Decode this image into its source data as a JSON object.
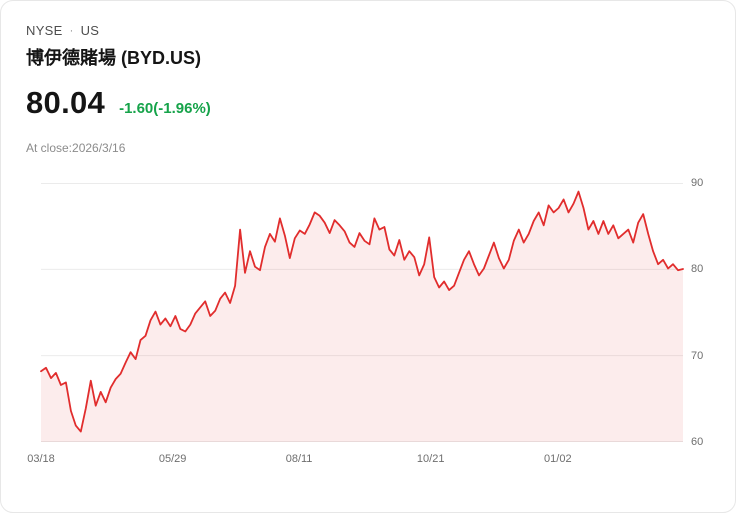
{
  "header": {
    "exchange": "NYSE",
    "separator": "·",
    "region": "US",
    "title": "博伊德賭場 (BYD.US)"
  },
  "quote": {
    "price": "80.04",
    "change": "-1.60(-1.96%)",
    "change_color": "#16a34a",
    "as_of": "At close:2026/3/16"
  },
  "chart_data": {
    "type": "line",
    "title": "BYD.US price history, 03/18 - close 2026/3/16",
    "ylim": [
      60,
      90
    ],
    "y_ticks": [
      90,
      80,
      70,
      60
    ],
    "x_ticks": [
      {
        "label": "03/18",
        "pos": 0.0
      },
      {
        "label": "05/29",
        "pos": 0.205
      },
      {
        "label": "08/11",
        "pos": 0.402
      },
      {
        "label": "10/21",
        "pos": 0.607
      },
      {
        "label": "01/02",
        "pos": 0.805
      }
    ],
    "grid": true,
    "legend": "none",
    "line_color": "#e12d2d",
    "fill_color": "rgba(225,45,45,0.09)",
    "grid_color": "#ebebeb",
    "series": [
      {
        "name": "BYD.US",
        "values": [
          68.2,
          68.6,
          67.4,
          68.0,
          66.6,
          66.9,
          63.6,
          61.9,
          61.2,
          63.9,
          67.1,
          64.2,
          65.8,
          64.6,
          66.3,
          67.3,
          67.9,
          69.2,
          70.4,
          69.6,
          71.8,
          72.3,
          74.1,
          75.1,
          73.6,
          74.3,
          73.4,
          74.6,
          73.1,
          72.8,
          73.6,
          74.9,
          75.6,
          76.3,
          74.6,
          75.2,
          76.6,
          77.3,
          76.1,
          78.1,
          84.6,
          79.6,
          82.1,
          80.3,
          79.9,
          82.6,
          84.1,
          83.2,
          85.9,
          83.9,
          81.3,
          83.6,
          84.5,
          84.1,
          85.2,
          86.6,
          86.2,
          85.4,
          84.2,
          85.7,
          85.1,
          84.4,
          83.1,
          82.6,
          84.2,
          83.3,
          82.9,
          85.9,
          84.6,
          84.9,
          82.3,
          81.6,
          83.4,
          81.1,
          82.1,
          81.4,
          79.3,
          80.6,
          83.7,
          79.1,
          77.9,
          78.6,
          77.6,
          78.1,
          79.6,
          81.1,
          82.1,
          80.6,
          79.3,
          80.1,
          81.6,
          83.1,
          81.3,
          80.1,
          81.1,
          83.3,
          84.6,
          83.1,
          84.1,
          85.6,
          86.6,
          85.1,
          87.4,
          86.6,
          87.1,
          88.1,
          86.6,
          87.6,
          89.0,
          87.1,
          84.6,
          85.6,
          84.1,
          85.6,
          84.1,
          85.1,
          83.6,
          84.1,
          84.6,
          83.1,
          85.4,
          86.4,
          84.1,
          82.1,
          80.6,
          81.1,
          80.1,
          80.6,
          79.9,
          80.04
        ]
      }
    ]
  }
}
